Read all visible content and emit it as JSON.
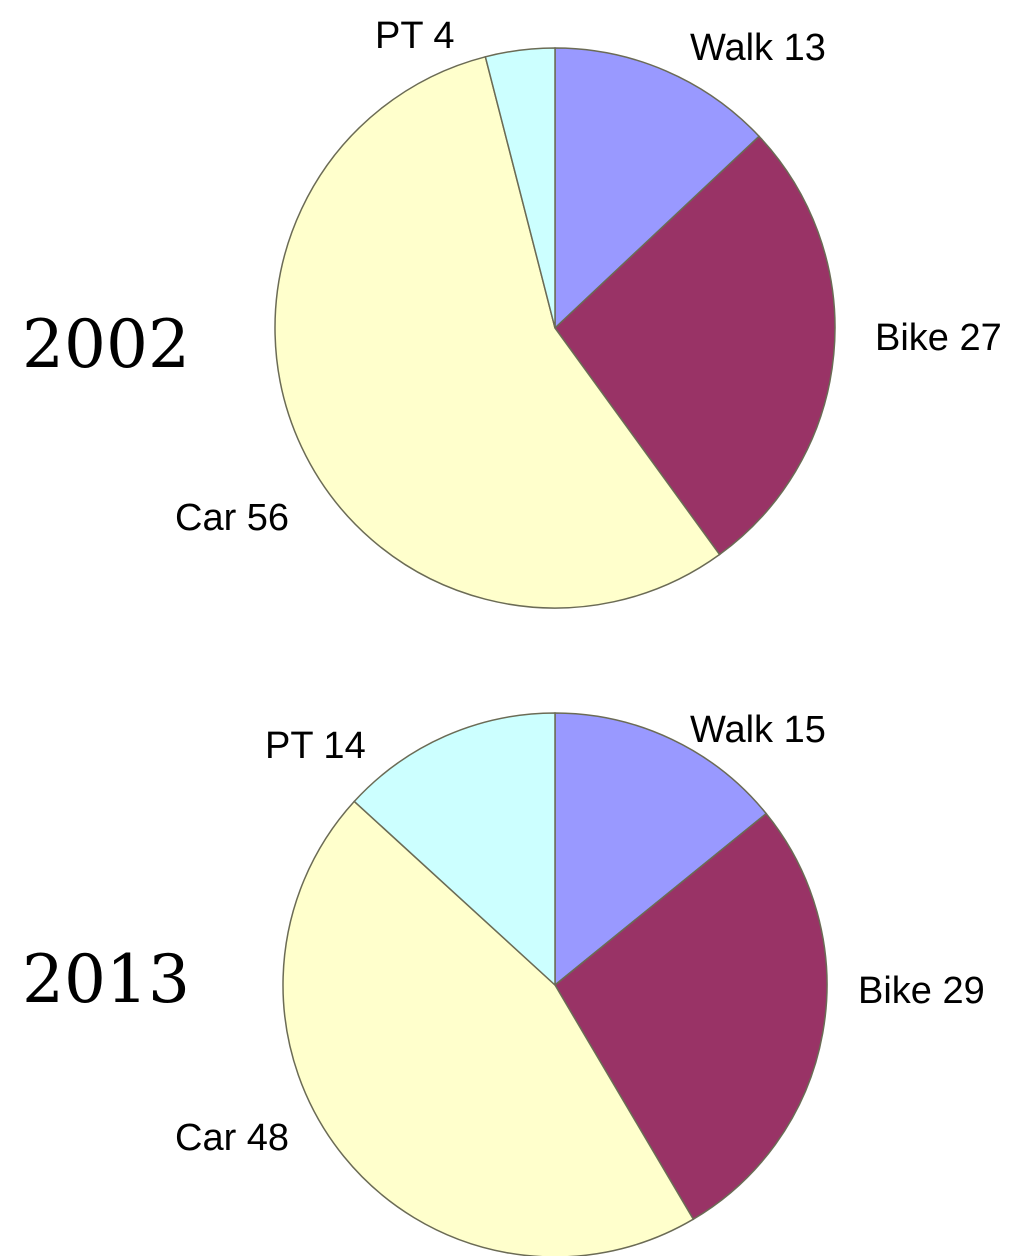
{
  "chart_data": [
    {
      "type": "pie",
      "title": "2002",
      "values": [
        13,
        27,
        56,
        4
      ],
      "value_labels": [
        "Walk 13",
        "Bike 27",
        "Car 56",
        "PT 4"
      ],
      "colors": [
        "#9999ff",
        "#993366",
        "#ffffcc",
        "#ccffff"
      ]
    },
    {
      "type": "pie",
      "title": "2013",
      "values": [
        15,
        29,
        48,
        14
      ],
      "value_labels": [
        "Walk 15",
        "Bike 29",
        "Car 48",
        "PT 14"
      ],
      "colors": [
        "#9999ff",
        "#993366",
        "#ffffcc",
        "#ccffff"
      ]
    }
  ]
}
